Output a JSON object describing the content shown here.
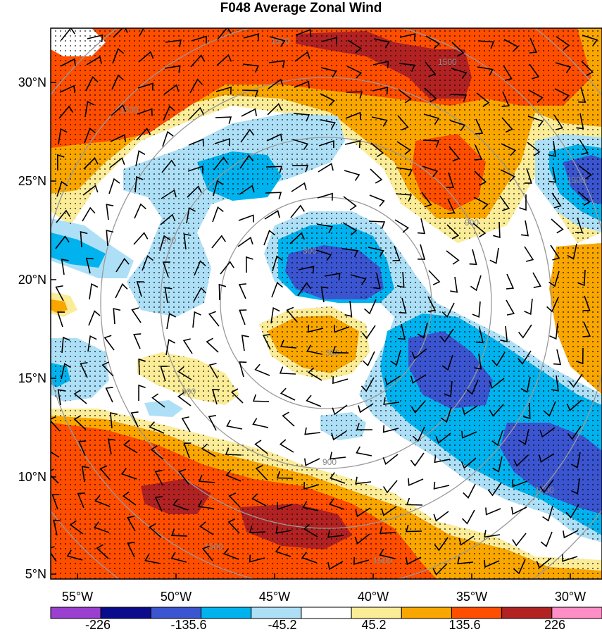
{
  "title": "F048 Average Zonal Wind",
  "axes": {
    "lat_ticks": [
      "30°N",
      "25°N",
      "20°N",
      "15°N",
      "10°N",
      "5°N"
    ],
    "lon_ticks": [
      "55°W",
      "50°W",
      "45°W",
      "40°W",
      "35°W",
      "30°W"
    ]
  },
  "colorbar": {
    "colors": [
      "#9a3fd0",
      "#0b0c8c",
      "#3b55d1",
      "#00b3ee",
      "#ade0f7",
      "#ffffff",
      "#fbec97",
      "#f9a600",
      "#ff4e00",
      "#b22222",
      "#ff8ec6"
    ],
    "labels": [
      "-226",
      "-135.6",
      "-45.2",
      "45.2",
      "135.6",
      "226"
    ]
  },
  "range_ring_labels": [
    "300",
    "900",
    "1500"
  ],
  "colors": {
    "grey_ring": "#999999",
    "strong_red": "#b22222",
    "red": "#ff4e00",
    "orange": "#f9a600",
    "light_yellow": "#fbec97",
    "light_blue": "#ade0f7",
    "blue": "#00b3ee",
    "mid_blue": "#3b55d1"
  }
}
